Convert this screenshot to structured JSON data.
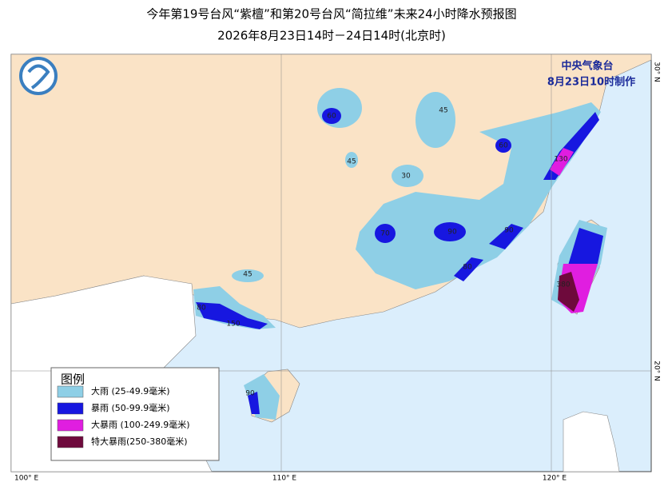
{
  "header": {
    "title": "今年第19号台风“紫檀”和第20号台风“简拉维”未来24小时降水预报图",
    "subtitle": "2026年8月23日14时－24日14时(北京时)"
  },
  "issuer": {
    "agency": "中央气象台",
    "time": "8月23日10时制作"
  },
  "legend": {
    "title": "图例",
    "items": [
      {
        "label": "大雨 (25-49.9毫米)",
        "color": "#8ecfe6"
      },
      {
        "label": "暴雨 (50-99.9毫米)",
        "color": "#1717e0"
      },
      {
        "label": "大暴雨 (100-249.9毫米)",
        "color": "#e01ee0"
      },
      {
        "label": "特大暴雨(250-380毫米)",
        "color": "#6e0a3c"
      }
    ]
  },
  "axes": {
    "lon_labels": [
      "100° E",
      "110° E",
      "120° E"
    ],
    "lat_labels": [
      "30° N",
      "20° N"
    ]
  },
  "map": {
    "rain_labels": [
      60,
      45,
      45,
      30,
      60,
      130,
      70,
      90,
      90,
      80,
      45,
      80,
      150,
      90,
      380
    ]
  }
}
